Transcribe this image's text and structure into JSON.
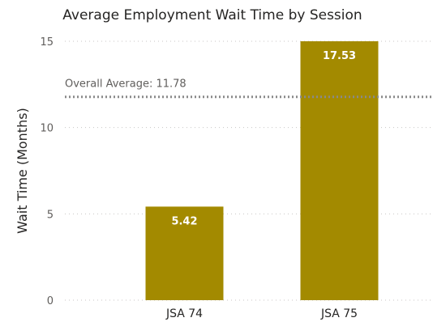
{
  "chart_data": {
    "type": "bar",
    "title": "Average Employment Wait Time by Session",
    "xlabel": "",
    "ylabel": "Wait Time (Months)",
    "categories": [
      "JSA 74",
      "JSA 75"
    ],
    "values": [
      5.42,
      17.53
    ],
    "data_labels": [
      "5.42",
      "17.53"
    ],
    "ylim": [
      0,
      15
    ],
    "yticks": [
      0,
      5,
      10,
      15
    ],
    "grid": true,
    "bar_color": "#a38a00",
    "reference_line": {
      "label": "Overall Average: 11.78",
      "value": 11.78,
      "color": "#8a8a8a"
    }
  }
}
